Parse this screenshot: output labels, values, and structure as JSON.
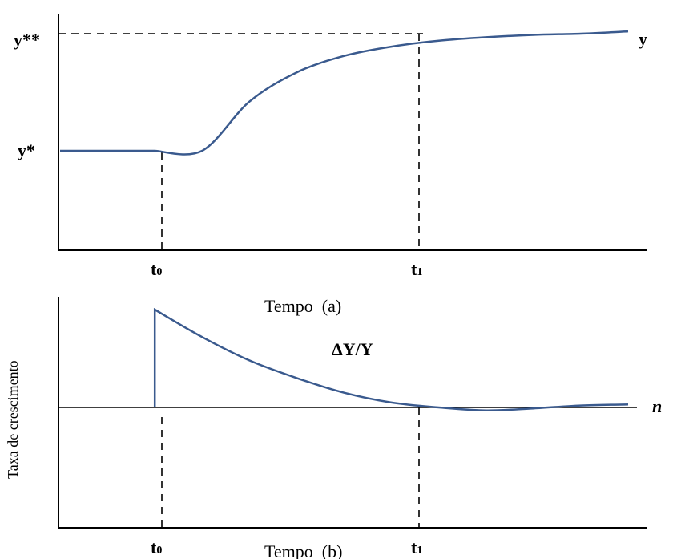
{
  "chart_data": [
    {
      "type": "line",
      "xlabel": "Tempo  (a)",
      "ylabel": "",
      "y_tick_labels": [
        "y*",
        "y**"
      ],
      "x_tick_labels": [
        "t0",
        "t1"
      ],
      "x_tick_main": [
        "t",
        "t"
      ],
      "x_tick_sub": [
        "0",
        "1"
      ],
      "series_label": "y",
      "x": [
        0,
        1,
        2,
        3,
        4,
        5,
        6,
        7,
        8,
        9,
        10,
        11,
        12
      ],
      "y": [
        0.0,
        0.0,
        0.0,
        0.0,
        0.42,
        0.67,
        0.81,
        0.89,
        0.94,
        0.97,
        0.99,
        1.0,
        1.02
      ],
      "y_levels": {
        "y*": 0.0,
        "y**": 1.0
      },
      "x_marks": {
        "t0": 2.0,
        "t1": 8.0
      },
      "grid": false
    },
    {
      "type": "line",
      "xlabel": "Tempo  (b)",
      "ylabel": "Taxa de crescimento",
      "x_tick_labels": [
        "t0",
        "t1"
      ],
      "x_tick_main": [
        "t",
        "t"
      ],
      "x_tick_sub": [
        "0",
        "1"
      ],
      "annotation": "ΔY/Y",
      "reference_label": "n",
      "x": [
        2,
        2,
        3,
        4,
        5,
        6,
        7,
        8,
        9,
        10,
        11,
        12
      ],
      "y": [
        0.0,
        1.0,
        0.72,
        0.48,
        0.3,
        0.15,
        0.05,
        0.0,
        -0.03,
        -0.01,
        0.02,
        0.03
      ],
      "x_marks": {
        "t0": 2.0,
        "t1": 8.0
      },
      "grid": false
    }
  ]
}
